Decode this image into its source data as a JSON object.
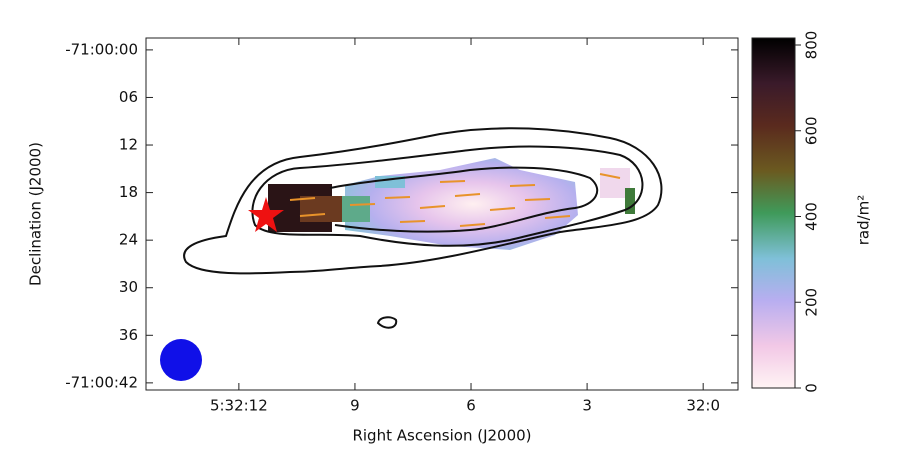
{
  "chart_data": {
    "type": "image",
    "x_label": "Right Ascension  (J2000)",
    "y_label": "Declination  (J2000)",
    "xlim": [
      14.4,
      -0.9
    ],
    "xticks": [
      {
        "value": 12,
        "label": "5:32:12"
      },
      9,
      6,
      3,
      {
        "value": 0,
        "label": "32:0"
      }
    ],
    "ylim": [
      -1.5,
      42.9
    ],
    "yticks": [
      {
        "value": 0,
        "label": "-71:00:00"
      },
      {
        "value": 6,
        "label": "06"
      },
      12,
      18,
      24,
      30,
      36,
      {
        "value": 42,
        "label": "-71:00:42"
      }
    ],
    "colorbar": {
      "label": "rad/m²",
      "lim": [
        0,
        800
      ],
      "ticks": [
        0,
        200,
        400,
        600,
        800
      ]
    }
  }
}
